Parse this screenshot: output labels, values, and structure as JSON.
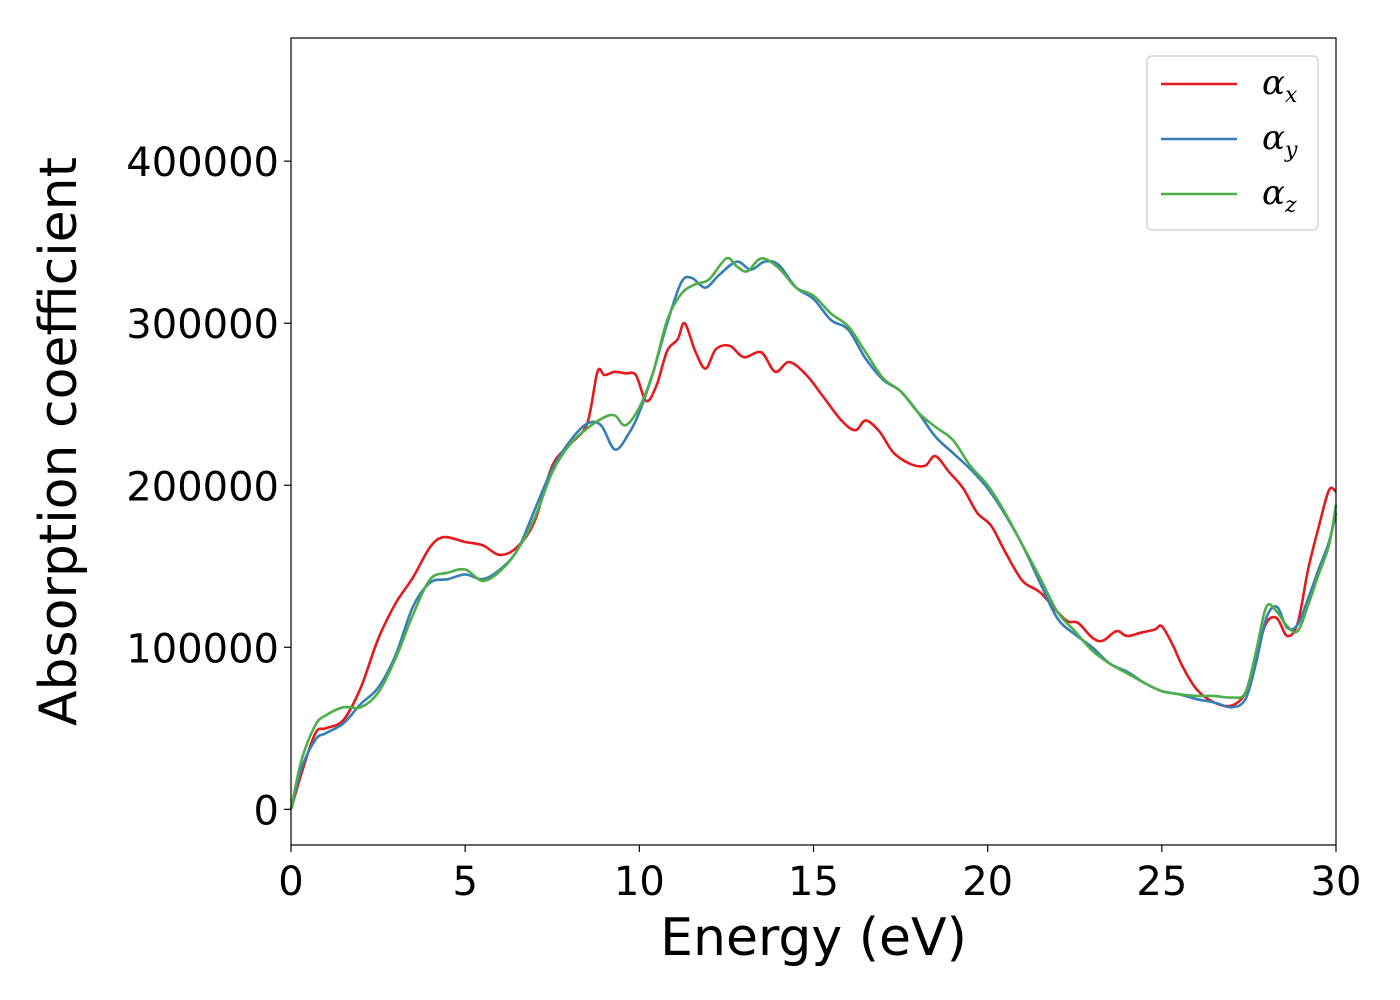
{
  "chart_data": {
    "type": "line",
    "title": "",
    "xlabel": "Energy (eV)",
    "ylabel": "Absorption coefficient",
    "xlim": [
      0,
      30
    ],
    "ylim": [
      -22000,
      476000
    ],
    "xticks": [
      0,
      5,
      10,
      15,
      20,
      25,
      30
    ],
    "yticks": [
      0,
      100000,
      200000,
      300000,
      400000
    ],
    "xtick_labels": [
      "0",
      "5",
      "10",
      "15",
      "20",
      "25",
      "30"
    ],
    "ytick_labels": [
      "0",
      "100000",
      "200000",
      "300000",
      "400000"
    ],
    "grid": false,
    "legend_position": "top-right",
    "series": [
      {
        "name": "α_x",
        "legend_base": "α",
        "legend_sub": "x",
        "color": "#e41a1c",
        "x": [
          0,
          0.3,
          0.7,
          1.0,
          1.5,
          2.0,
          2.5,
          3.0,
          3.5,
          4.0,
          4.4,
          5.0,
          5.5,
          6.0,
          6.5,
          7.0,
          7.5,
          8.0,
          8.5,
          8.8,
          9.0,
          9.3,
          9.6,
          9.9,
          10.2,
          10.5,
          10.8,
          11.1,
          11.3,
          11.6,
          11.9,
          12.2,
          12.6,
          13.0,
          13.5,
          13.9,
          14.3,
          14.8,
          15.3,
          15.8,
          16.2,
          16.5,
          16.9,
          17.3,
          17.8,
          18.2,
          18.5,
          18.9,
          19.3,
          19.7,
          20.1,
          20.5,
          21.0,
          21.5,
          22.0,
          22.3,
          22.6,
          23.0,
          23.3,
          23.7,
          24.0,
          24.4,
          24.8,
          25.0,
          25.3,
          25.6,
          26.0,
          26.5,
          27.0,
          27.4,
          27.7,
          28.0,
          28.3,
          28.6,
          28.9,
          29.2,
          29.5,
          29.8,
          30.0
        ],
        "values": [
          0,
          22000,
          47000,
          50000,
          55000,
          75000,
          105000,
          127000,
          143000,
          162000,
          168000,
          165000,
          163000,
          157000,
          162000,
          178000,
          212000,
          225000,
          238000,
          270000,
          268000,
          270000,
          269000,
          268000,
          252000,
          262000,
          283000,
          290000,
          300000,
          283000,
          272000,
          284000,
          286000,
          279000,
          282000,
          270000,
          276000,
          268000,
          254000,
          240000,
          234000,
          240000,
          233000,
          220000,
          213000,
          212000,
          218000,
          208000,
          198000,
          183000,
          175000,
          159000,
          141000,
          134000,
          122000,
          116000,
          115000,
          106000,
          104000,
          110000,
          107000,
          109000,
          111000,
          113000,
          102000,
          88000,
          74000,
          66000,
          64000,
          72000,
          95000,
          115000,
          118000,
          107000,
          115000,
          148000,
          174000,
          197000,
          196000
        ]
      },
      {
        "name": "α_y",
        "legend_base": "α",
        "legend_sub": "y",
        "color": "#377eb8",
        "x": [
          0,
          0.3,
          0.7,
          1.0,
          1.5,
          2.0,
          2.5,
          3.0,
          3.5,
          4.0,
          4.5,
          5.0,
          5.5,
          6.0,
          6.5,
          7.0,
          7.5,
          8.0,
          8.5,
          8.9,
          9.3,
          9.7,
          10.0,
          10.4,
          10.8,
          11.2,
          11.5,
          11.9,
          12.3,
          12.8,
          13.2,
          13.6,
          14.0,
          14.5,
          15.0,
          15.5,
          16.0,
          16.5,
          17.0,
          17.5,
          18.0,
          18.5,
          19.0,
          19.5,
          20.0,
          20.5,
          21.0,
          21.5,
          22.0,
          22.5,
          23.0,
          23.5,
          24.0,
          24.5,
          25.0,
          25.5,
          26.0,
          26.5,
          27.0,
          27.4,
          27.7,
          28.0,
          28.3,
          28.6,
          28.9,
          29.2,
          29.5,
          29.8,
          30.0
        ],
        "values": [
          0,
          25000,
          43000,
          47000,
          53000,
          65000,
          75000,
          95000,
          125000,
          140000,
          142000,
          145000,
          142000,
          148000,
          160000,
          185000,
          210000,
          227000,
          238000,
          237000,
          222000,
          232000,
          245000,
          270000,
          300000,
          325000,
          328000,
          322000,
          330000,
          338000,
          333000,
          338000,
          336000,
          322000,
          315000,
          302000,
          296000,
          278000,
          265000,
          258000,
          245000,
          230000,
          220000,
          210000,
          198000,
          182000,
          163000,
          140000,
          118000,
          108000,
          100000,
          90000,
          85000,
          78000,
          73000,
          71000,
          68000,
          66000,
          63000,
          68000,
          90000,
          118000,
          125000,
          112000,
          114000,
          130000,
          148000,
          165000,
          183000
        ]
      },
      {
        "name": "α_z",
        "legend_base": "α",
        "legend_sub": "z",
        "color": "#4daf4a",
        "x": [
          0,
          0.3,
          0.7,
          1.0,
          1.5,
          2.0,
          2.5,
          3.0,
          3.5,
          4.0,
          4.5,
          5.0,
          5.5,
          6.0,
          6.5,
          7.0,
          7.5,
          8.0,
          8.5,
          9.0,
          9.3,
          9.6,
          10.0,
          10.4,
          10.8,
          11.2,
          11.6,
          12.0,
          12.5,
          12.8,
          13.1,
          13.5,
          14.0,
          14.5,
          15.0,
          15.5,
          16.0,
          16.5,
          17.0,
          17.5,
          18.0,
          18.5,
          19.0,
          19.5,
          20.0,
          20.5,
          21.0,
          21.5,
          22.0,
          22.5,
          23.0,
          23.5,
          24.0,
          24.5,
          25.0,
          25.5,
          26.0,
          26.5,
          27.0,
          27.4,
          27.7,
          28.0,
          28.3,
          28.6,
          28.9,
          29.2,
          29.5,
          29.8,
          30.0
        ],
        "values": [
          0,
          30000,
          52000,
          58000,
          63000,
          63000,
          72000,
          93000,
          120000,
          142000,
          146000,
          148000,
          141000,
          147000,
          160000,
          180000,
          208000,
          225000,
          235000,
          242000,
          243000,
          237000,
          248000,
          270000,
          302000,
          318000,
          324000,
          327000,
          340000,
          335000,
          332000,
          340000,
          334000,
          322000,
          317000,
          306000,
          298000,
          282000,
          266000,
          258000,
          245000,
          236000,
          228000,
          212000,
          200000,
          183000,
          163000,
          143000,
          122000,
          110000,
          98000,
          90000,
          84000,
          78000,
          73000,
          71000,
          70000,
          70000,
          69000,
          72000,
          97000,
          125000,
          122000,
          113000,
          110000,
          126000,
          145000,
          163000,
          188000
        ]
      }
    ]
  }
}
